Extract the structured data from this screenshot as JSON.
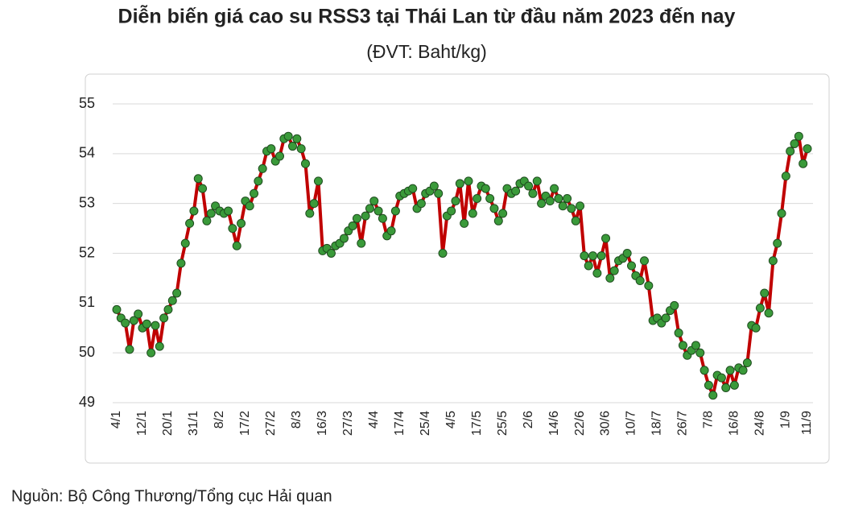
{
  "chart_data": {
    "type": "line",
    "title": "Diễn biến giá cao su RSS3 tại Thái Lan từ đầu năm 2023 đến nay",
    "subtitle": "(ĐVT: Baht/kg)",
    "source": "Nguồn: Bộ Công Thương/Tổng cục Hải quan",
    "categories": [
      "4/1",
      null,
      null,
      null,
      null,
      null,
      "12/1",
      null,
      null,
      null,
      null,
      null,
      "20/1",
      null,
      null,
      null,
      null,
      null,
      "31/1",
      null,
      null,
      null,
      null,
      null,
      "8/2",
      null,
      null,
      null,
      null,
      null,
      "17/2",
      null,
      null,
      null,
      null,
      null,
      "27/2",
      null,
      null,
      null,
      null,
      null,
      "8/3",
      null,
      null,
      null,
      null,
      null,
      "16/3",
      null,
      null,
      null,
      null,
      null,
      "27/3",
      null,
      null,
      null,
      null,
      null,
      "4/4",
      null,
      null,
      null,
      null,
      null,
      "17/4",
      null,
      null,
      null,
      null,
      null,
      "25/4",
      null,
      null,
      null,
      null,
      null,
      "4/5",
      null,
      null,
      null,
      null,
      null,
      "17/5",
      null,
      null,
      null,
      null,
      null,
      "25/5",
      null,
      null,
      null,
      null,
      null,
      "2/6",
      null,
      null,
      null,
      null,
      null,
      "14/6",
      null,
      null,
      null,
      null,
      null,
      "22/6",
      null,
      null,
      null,
      null,
      null,
      "30/6",
      null,
      null,
      null,
      null,
      null,
      "10/7",
      null,
      null,
      null,
      null,
      null,
      "18/7",
      null,
      null,
      null,
      null,
      null,
      "26/7",
      null,
      null,
      null,
      null,
      null,
      "7/8",
      null,
      null,
      null,
      null,
      null,
      "16/8",
      null,
      null,
      null,
      null,
      null,
      "24/8",
      null,
      null,
      null,
      null,
      null,
      "1/9",
      null,
      null,
      null,
      null,
      "11/9"
    ],
    "values": [
      50.87,
      50.7,
      50.6,
      50.07,
      50.65,
      50.78,
      50.5,
      50.58,
      50.0,
      50.55,
      50.13,
      50.7,
      50.87,
      51.05,
      51.2,
      51.8,
      52.2,
      52.6,
      52.85,
      53.5,
      53.3,
      52.65,
      52.8,
      52.95,
      52.85,
      52.8,
      52.85,
      52.5,
      52.15,
      52.6,
      53.05,
      52.95,
      53.2,
      53.45,
      53.7,
      54.05,
      54.1,
      53.85,
      53.95,
      54.3,
      54.35,
      54.15,
      54.3,
      54.1,
      53.8,
      52.8,
      53.0,
      53.45,
      52.05,
      52.1,
      52.0,
      52.15,
      52.2,
      52.3,
      52.45,
      52.55,
      52.7,
      52.2,
      52.75,
      52.9,
      53.05,
      52.85,
      52.7,
      52.35,
      52.45,
      52.85,
      53.15,
      53.2,
      53.25,
      53.3,
      52.9,
      53.0,
      53.2,
      53.25,
      53.35,
      53.2,
      52.0,
      52.75,
      52.85,
      53.05,
      53.4,
      52.6,
      53.45,
      52.8,
      53.1,
      53.35,
      53.3,
      53.1,
      52.9,
      52.65,
      52.8,
      53.3,
      53.2,
      53.25,
      53.4,
      53.45,
      53.35,
      53.2,
      53.45,
      53.0,
      53.15,
      53.05,
      53.3,
      53.1,
      52.95,
      53.1,
      52.9,
      52.65,
      52.95,
      51.95,
      51.75,
      51.95,
      51.6,
      51.95,
      52.3,
      51.5,
      51.65,
      51.85,
      51.9,
      52.0,
      51.75,
      51.55,
      51.45,
      51.85,
      51.35,
      50.65,
      50.7,
      50.6,
      50.7,
      50.85,
      50.95,
      50.4,
      50.15,
      49.95,
      50.05,
      50.15,
      50.0,
      49.65,
      49.35,
      49.15,
      49.55,
      49.5,
      49.3,
      49.65,
      49.35,
      49.7,
      49.65,
      49.8,
      50.55,
      50.5,
      50.9,
      51.2,
      50.8,
      51.85,
      52.2,
      52.8,
      53.55,
      54.05,
      54.2,
      54.35,
      53.8,
      54.1
    ],
    "color": "#c00000",
    "marker_color": "#3a9a3a",
    "ylim": [
      49,
      55
    ],
    "yticks": [
      49,
      50,
      51,
      52,
      53,
      54,
      55
    ],
    "grid": true
  }
}
